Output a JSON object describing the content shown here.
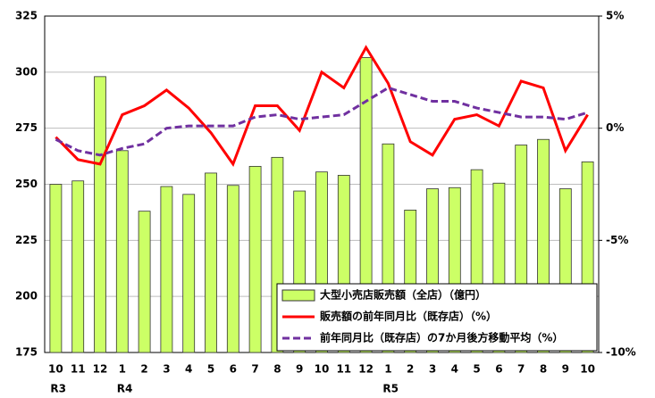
{
  "chart_data": {
    "type": "bar_line",
    "categories": [
      "10",
      "11",
      "12",
      "1",
      "2",
      "3",
      "4",
      "5",
      "6",
      "7",
      "8",
      "9",
      "10",
      "11",
      "12",
      "1",
      "2",
      "3",
      "4",
      "5",
      "6",
      "7",
      "8",
      "9",
      "10"
    ],
    "category_groups": [
      "R3",
      null,
      null,
      "R4",
      null,
      null,
      null,
      null,
      null,
      null,
      null,
      null,
      null,
      null,
      null,
      "R5",
      null,
      null,
      null,
      null,
      null,
      null,
      null,
      null,
      null
    ],
    "ylim": [
      175,
      325
    ],
    "yticks": [
      175,
      200,
      225,
      250,
      275,
      300,
      325
    ],
    "y2lim": [
      -10,
      5
    ],
    "y2ticks": [
      {
        "value": -10,
        "label": "-10%"
      },
      {
        "value": -5,
        "label": "-5%"
      },
      {
        "value": 0,
        "label": "0%"
      },
      {
        "value": 5,
        "label": "5%"
      }
    ],
    "grid": true,
    "legend": "lower right",
    "series": [
      {
        "name": "大型小売店販売額（全店）（億円）",
        "type": "bar",
        "color": "#ccff66",
        "values": [
          250,
          251.5,
          298,
          265,
          238,
          249,
          245.5,
          255,
          249.5,
          258,
          262,
          247,
          255.5,
          254,
          306.5,
          268,
          238.5,
          248,
          248.5,
          256.5,
          250.5,
          267.5,
          270,
          248,
          260
        ]
      },
      {
        "name": "販売額の前年同月比（既存店）（%）",
        "type": "line",
        "axis": "y2",
        "color": "#ff0000",
        "dashed": false,
        "values": [
          -0.4,
          -1.4,
          -1.6,
          0.6,
          1.0,
          1.7,
          0.9,
          -0.2,
          -1.6,
          1.0,
          1.0,
          -0.1,
          2.5,
          1.8,
          3.6,
          2.0,
          -0.6,
          -1.2,
          0.4,
          0.6,
          0.1,
          2.1,
          1.8,
          -1.0,
          0.6
        ]
      },
      {
        "name": "前年同月比（既存店）の7か月後方移動平均（%）",
        "type": "line",
        "axis": "y2",
        "color": "#7030a0",
        "dashed": true,
        "values": [
          -0.5,
          -1.0,
          -1.2,
          -0.9,
          -0.7,
          0.0,
          0.1,
          0.1,
          0.1,
          0.5,
          0.6,
          0.4,
          0.5,
          0.6,
          1.2,
          1.8,
          1.5,
          1.2,
          1.2,
          0.9,
          0.7,
          0.5,
          0.5,
          0.4,
          0.7
        ]
      }
    ]
  }
}
